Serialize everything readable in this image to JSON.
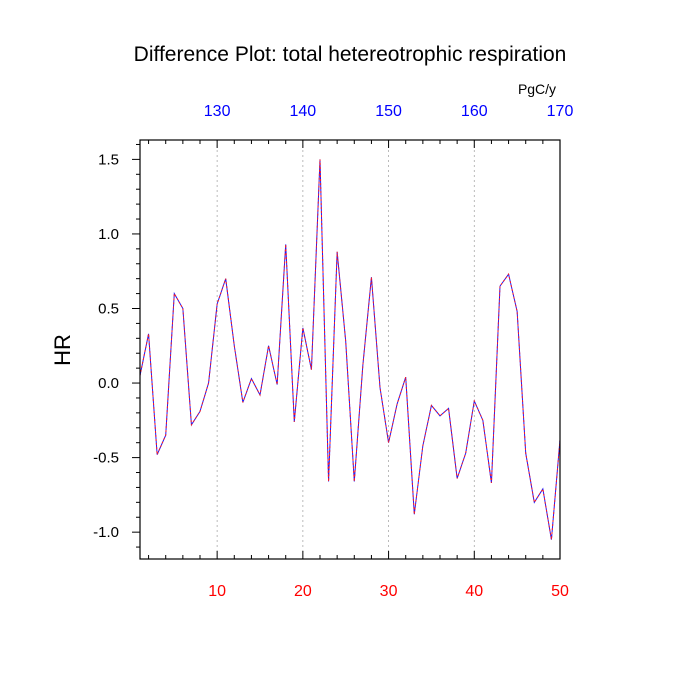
{
  "chart_data": {
    "type": "line",
    "title": "Difference Plot: total hetereotrophic respiration",
    "ylabel": "HR",
    "top_axis_unit": "PgC/y",
    "x": [
      1,
      2,
      3,
      4,
      5,
      6,
      7,
      8,
      9,
      10,
      11,
      12,
      13,
      14,
      15,
      16,
      17,
      18,
      19,
      20,
      21,
      22,
      23,
      24,
      25,
      26,
      27,
      28,
      29,
      30,
      31,
      32,
      33,
      34,
      35,
      36,
      37,
      38,
      39,
      40,
      41,
      42,
      43,
      44,
      45,
      46,
      47,
      48,
      49,
      50
    ],
    "series": [
      {
        "values": [
          0.05,
          0.33,
          -0.48,
          -0.35,
          0.6,
          0.5,
          -0.28,
          -0.19,
          0.0,
          0.53,
          0.7,
          0.25,
          -0.13,
          0.03,
          -0.08,
          0.25,
          -0.01,
          0.93,
          -0.26,
          0.37,
          0.09,
          1.5,
          -0.66,
          0.88,
          0.28,
          -0.66,
          0.12,
          0.71,
          -0.03,
          -0.4,
          -0.14,
          0.04,
          -0.88,
          -0.42,
          -0.15,
          -0.22,
          -0.17,
          -0.64,
          -0.47,
          -0.12,
          -0.25,
          -0.67,
          0.65,
          0.73,
          0.48,
          -0.47,
          -0.8,
          -0.71,
          -1.05,
          -0.38
        ],
        "color_primary": "#1a1aff",
        "color_secondary": "#ff1a1a"
      }
    ],
    "xlim": [
      1,
      50
    ],
    "ylim": [
      -1.18,
      1.63
    ],
    "bottom_ticks": [
      "10",
      "20",
      "30",
      "40",
      "50"
    ],
    "bottom_tick_values": [
      10,
      20,
      30,
      40,
      50
    ],
    "bottom_tick_color": "#ff0000",
    "top_ticks": [
      "130",
      "140",
      "150",
      "160",
      "170"
    ],
    "top_tick_values": [
      10,
      20,
      30,
      40,
      50
    ],
    "top_tick_color": "#0000ff",
    "left_ticks": [
      "1.5",
      "1.0",
      "0.5",
      "0.0",
      "-0.5",
      "-1.0"
    ],
    "left_tick_values": [
      1.5,
      1.0,
      0.5,
      0.0,
      -0.5,
      -1.0
    ],
    "grid": "vertical-dashed"
  }
}
